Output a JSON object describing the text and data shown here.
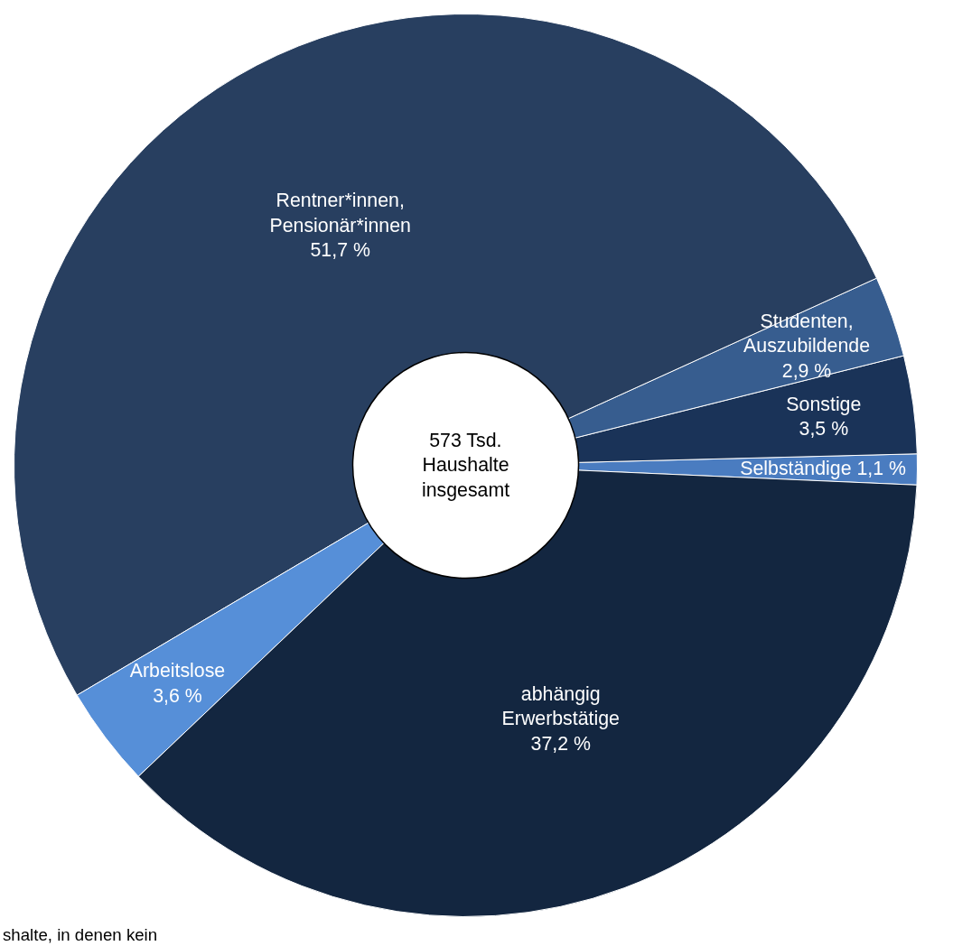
{
  "chart_data": {
    "type": "donut",
    "categories": [
      "Selbständige",
      "Sonstige",
      "Studenten,\nAuszubildende",
      "Rentner*innen,\nPensionär*innen",
      "Arbeitslose",
      "abhängig\nErwerbstätige"
    ],
    "values": [
      1.1,
      3.5,
      2.9,
      51.7,
      3.6,
      37.2
    ],
    "colors": [
      "#4a7cc0",
      "#1a3358",
      "#375d8f",
      "#283f60",
      "#568fd8",
      "#132640"
    ],
    "value_labels": [
      "1,1 %",
      "3,5 %",
      "2,9 %",
      "51,7 %",
      "3,6 %",
      "37,2 %"
    ],
    "title": "573 Tsd.\nHaushalte\ninsgesamt",
    "annotations": [
      "shalte, in denen  kein"
    ]
  }
}
